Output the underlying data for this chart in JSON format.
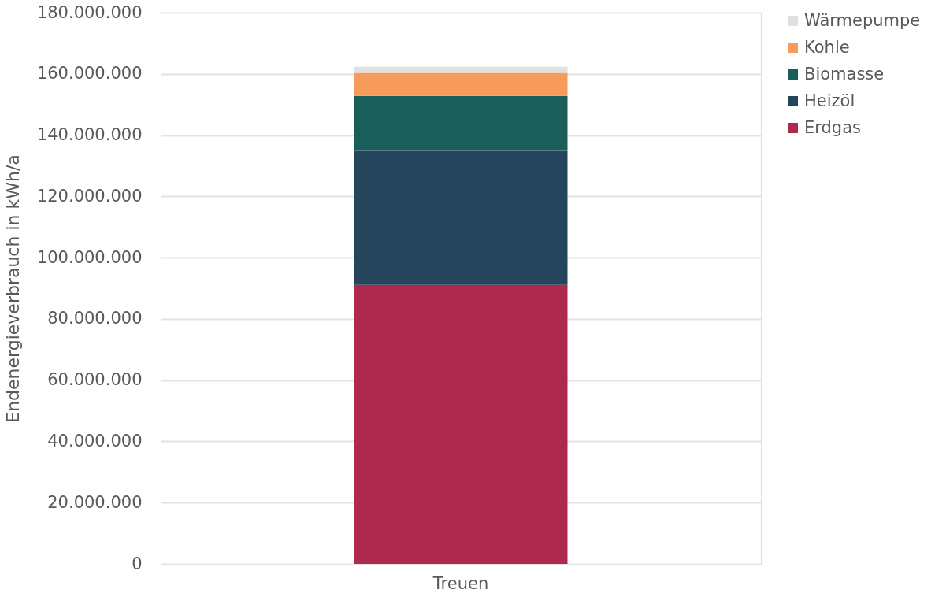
{
  "chart_data": {
    "type": "bar",
    "stacked": true,
    "categories": [
      "Treuen"
    ],
    "ylabel": "Endenergieverbrauch in kWh/a",
    "ylim": [
      0,
      180000000
    ],
    "yticks": [
      {
        "value": 0,
        "label": "0"
      },
      {
        "value": 20000000,
        "label": "20.000.000"
      },
      {
        "value": 40000000,
        "label": "40.000.000"
      },
      {
        "value": 60000000,
        "label": "60.000.000"
      },
      {
        "value": 80000000,
        "label": "80.000.000"
      },
      {
        "value": 100000000,
        "label": "100.000.000"
      },
      {
        "value": 120000000,
        "label": "120.000.000"
      },
      {
        "value": 140000000,
        "label": "140.000.000"
      },
      {
        "value": 160000000,
        "label": "160.000.000"
      },
      {
        "value": 180000000,
        "label": "180.000.000"
      }
    ],
    "grid": "y",
    "legend": "right",
    "series": [
      {
        "name": "Erdgas",
        "color": "#ad2a4e",
        "values": [
          91100000
        ]
      },
      {
        "name": "Heizöl",
        "color": "#25455c",
        "values": [
          43800000
        ]
      },
      {
        "name": "Biomasse",
        "color": "#1a5e5a",
        "values": [
          17900000
        ]
      },
      {
        "name": "Kohle",
        "color": "#f79b5c",
        "values": [
          7500000
        ]
      },
      {
        "name": "Wärmepumpe",
        "color": "#e0e0e0",
        "values": [
          2000000
        ]
      }
    ]
  }
}
